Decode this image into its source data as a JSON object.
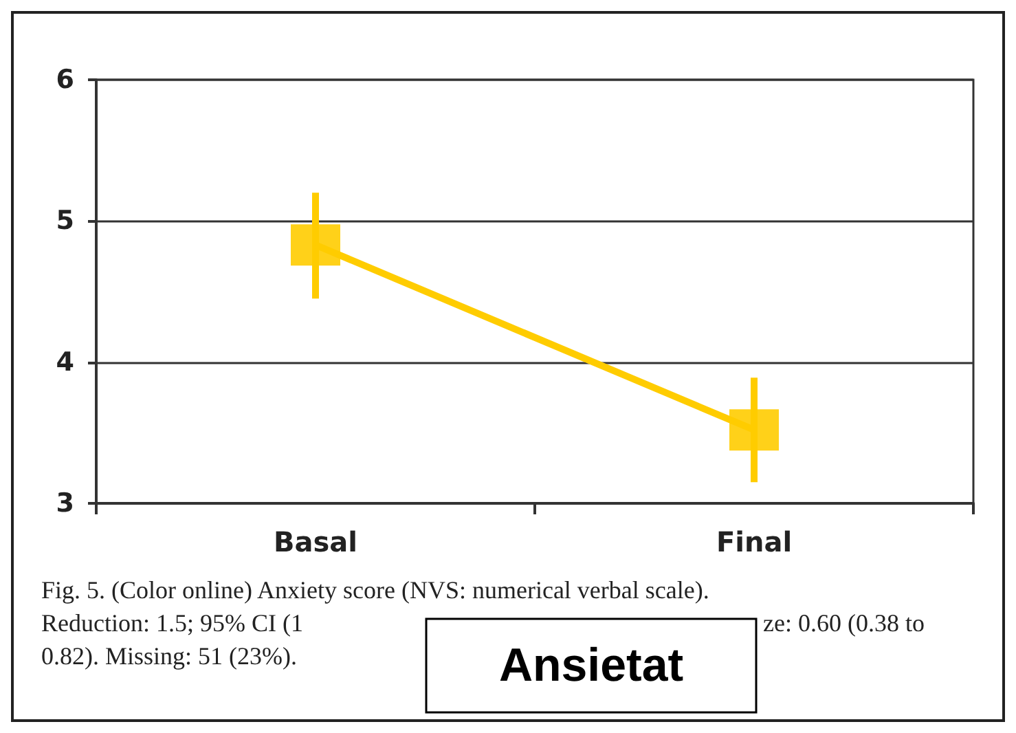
{
  "chart_data": {
    "type": "line",
    "categories": [
      "Basal",
      "Final"
    ],
    "series": [
      {
        "color": "#ffcc00",
        "values": [
          4.83,
          3.52
        ],
        "errors": [
          [
            4.45,
            5.2
          ],
          [
            3.15,
            3.89
          ]
        ]
      }
    ],
    "ylim": [
      3,
      6
    ],
    "yticks": [
      3,
      4,
      5,
      6
    ],
    "grid": "y",
    "marker": "square",
    "line_style": "solid",
    "annotations": [
      "Fig. 5. (Color online) Anxiety score (NVS: numerical verbal scale).",
      "Reduction: 1.5; 95% CI (1",
      "Ansietat",
      "ze: 0.60 (0.38 to",
      "0.82). Missing: 51 (23%)."
    ]
  }
}
